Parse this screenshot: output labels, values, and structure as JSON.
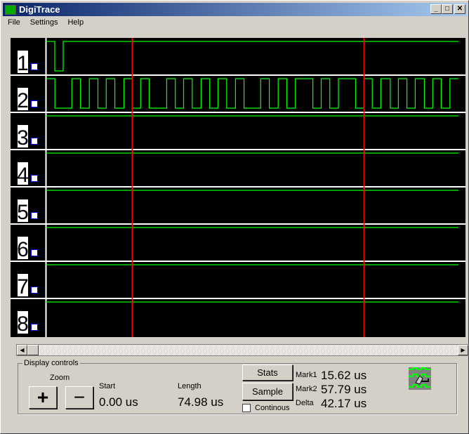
{
  "window": {
    "title": "DigiTrace",
    "minimize": "_",
    "maximize": "□",
    "close": "✕"
  },
  "menu": [
    "File",
    "Settings",
    "Help"
  ],
  "colors": {
    "trace": "#00ff00",
    "marker": "#ff0000",
    "grid": "#ffffff",
    "background": "#000000"
  },
  "channels": [
    {
      "label": "1",
      "initial": 1,
      "edges": [
        1.53,
        3.07
      ]
    },
    {
      "label": "2",
      "initial": 1,
      "edges": [
        1.56,
        4.64,
        6.21,
        7.82,
        9.39,
        10.9,
        12.47,
        14.13,
        15.64,
        17.16,
        18.71,
        21.89,
        23.47,
        24.97,
        26.54,
        28.15,
        29.72,
        31.23,
        32.8,
        34.41,
        35.97,
        39.0,
        40.57,
        42.18,
        43.75,
        45.31,
        48.49,
        50.01,
        51.57,
        53.14,
        56.27,
        57.77,
        59.29,
        60.85,
        62.57,
        64.04,
        65.6,
        67.11,
        68.77,
        70.29,
        71.84,
        73.42
      ]
    },
    {
      "label": "3",
      "initial": 1,
      "edges": []
    },
    {
      "label": "4",
      "initial": 1,
      "edges": []
    },
    {
      "label": "5",
      "initial": 1,
      "edges": []
    },
    {
      "label": "6",
      "initial": 1,
      "edges": []
    },
    {
      "label": "7",
      "initial": 1,
      "edges": []
    },
    {
      "label": "8",
      "initial": 1,
      "edges": []
    }
  ],
  "markers_us": [
    15.62,
    57.79
  ],
  "span_us": 74.98,
  "controls": {
    "group_label": "Display controls",
    "zoom_label": "Zoom",
    "zoom_in": "+",
    "zoom_out": "−",
    "start_label": "Start",
    "start_value": "0.00 us",
    "length_label": "Length",
    "length_value": "74.98 us",
    "stats": "Stats",
    "sample": "Sample",
    "continous": "Continous",
    "mark1_label": "Mark1",
    "mark1_value": "15.62 us",
    "mark2_label": "Mark2",
    "mark2_value": "57.79 us",
    "delta_label": "Delta",
    "delta_value": "42.17 us"
  }
}
